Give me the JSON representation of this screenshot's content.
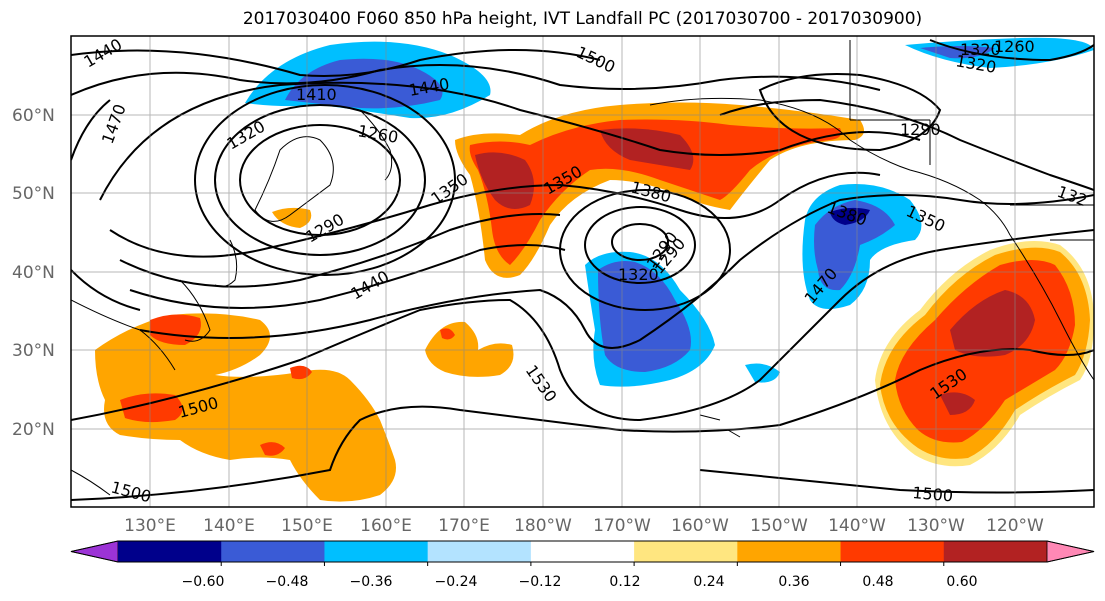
{
  "title": "2017030400 F060 850 hPa height, IVT Landfall PC (2017030700 - 2017030900)",
  "lat_labels": [
    "60°N",
    "50°N",
    "40°N",
    "30°N",
    "20°N"
  ],
  "lon_labels": [
    "130°E",
    "140°E",
    "150°E",
    "160°E",
    "170°E",
    "180°W",
    "170°W",
    "160°W",
    "150°W",
    "140°W",
    "130°W",
    "120°W"
  ],
  "contour_labels": [
    "1440",
    "1500",
    "1470",
    "1410",
    "1440",
    "1320",
    "1260",
    "1350",
    "1290",
    "1440",
    "1350",
    "1380",
    "1290",
    "1320",
    "1380",
    "1350",
    "1470",
    "1530",
    "1530",
    "1500",
    "1500",
    "1500",
    "1290",
    "1260",
    "1320",
    "132",
    "1320",
    "1290"
  ],
  "colorbar": {
    "ticks": [
      "−0.60",
      "−0.48",
      "−0.36",
      "−0.24",
      "−0.12",
      "0.12",
      "0.24",
      "0.36",
      "0.48",
      "0.60"
    ],
    "colors": [
      "#9c33d6",
      "#00008b",
      "#3a5bd6",
      "#00bfff",
      "#b3e3ff",
      "#ffffff",
      "#ffe680",
      "#ffa500",
      "#ff3a00",
      "#b22222",
      "#ff88b5"
    ]
  }
}
